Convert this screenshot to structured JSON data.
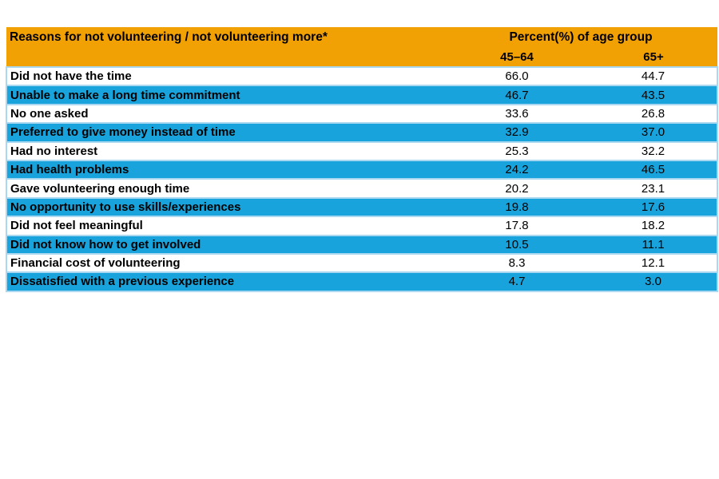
{
  "chart_data": {
    "type": "table",
    "title": "Reasons for not volunteering / not volunteering more*",
    "header": {
      "title": "Reasons for not volunteering / not volunteering more*",
      "group": "Percent(%) of age group",
      "col_45_64": "45–64",
      "col_65_plus": "65+"
    },
    "columns": [
      "Reasons for not volunteering / not volunteering more*",
      "45–64",
      "65+"
    ],
    "rows": [
      {
        "reason": "Did not have the time",
        "pct_45_64": "66.0",
        "pct_65_plus": "44.7"
      },
      {
        "reason": "Unable to  make a long time commitment",
        "pct_45_64": "46.7",
        "pct_65_plus": "43.5"
      },
      {
        "reason": "No one asked",
        "pct_45_64": "33.6",
        "pct_65_plus": "26.8"
      },
      {
        "reason": "Preferred to give money instead of time",
        "pct_45_64": "32.9",
        "pct_65_plus": "37.0"
      },
      {
        "reason": "Had no interest",
        "pct_45_64": "25.3",
        "pct_65_plus": "32.2"
      },
      {
        "reason": "Had health problems",
        "pct_45_64": "24.2",
        "pct_65_plus": "46.5"
      },
      {
        "reason": "Gave volunteering enough time",
        "pct_45_64": "20.2",
        "pct_65_plus": "23.1"
      },
      {
        "reason": "No opportunity to use skills/experiences",
        "pct_45_64": "19.8",
        "pct_65_plus": "17.6"
      },
      {
        "reason": "Did not feel meaningful",
        "pct_45_64": "17.8",
        "pct_65_plus": "18.2"
      },
      {
        "reason": "Did not know how to get involved",
        "pct_45_64": "10.5",
        "pct_65_plus": "11.1"
      },
      {
        "reason": "Financial cost of volunteering",
        "pct_45_64": "8.3",
        "pct_65_plus": "12.1"
      },
      {
        "reason": "Dissatisfied with a previous experience",
        "pct_45_64": "4.7",
        "pct_65_plus": "3.0"
      }
    ],
    "layout": {
      "row_striping": "alternating white and blue, starting white",
      "grid": "light blue horizontal row borders, no internal vertical borders"
    }
  },
  "colors": {
    "header_bg": "#F2A104",
    "row_highlight": "#19A3DC",
    "row_border": "#A9D8F0",
    "text": "#000000",
    "page_bg": "#FFFFFF"
  }
}
